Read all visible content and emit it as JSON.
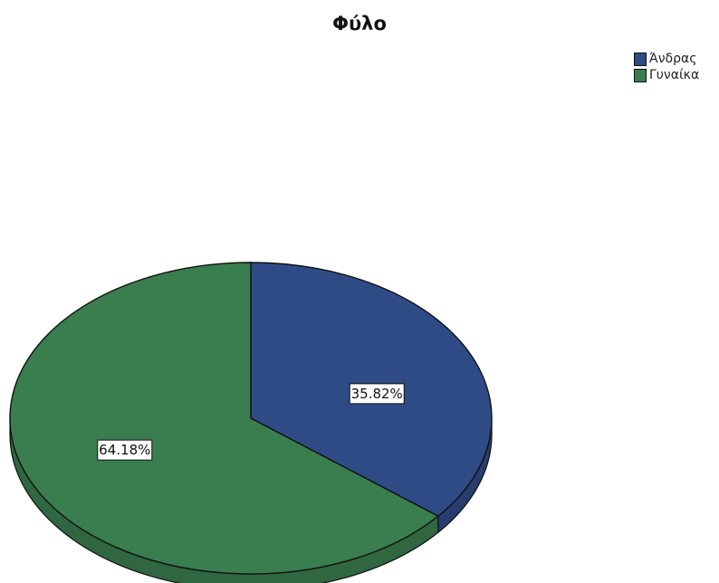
{
  "chart_data": {
    "type": "pie",
    "title": "Φύλο",
    "categories": [
      "Άνδρας",
      "Γυναίκα"
    ],
    "values": [
      35.82,
      64.18
    ],
    "data_labels": [
      "35.82%",
      "64.18%"
    ],
    "colors": [
      "#2f4b86",
      "#3a7d4e"
    ],
    "legend_position": "top-right",
    "three_d": true
  }
}
